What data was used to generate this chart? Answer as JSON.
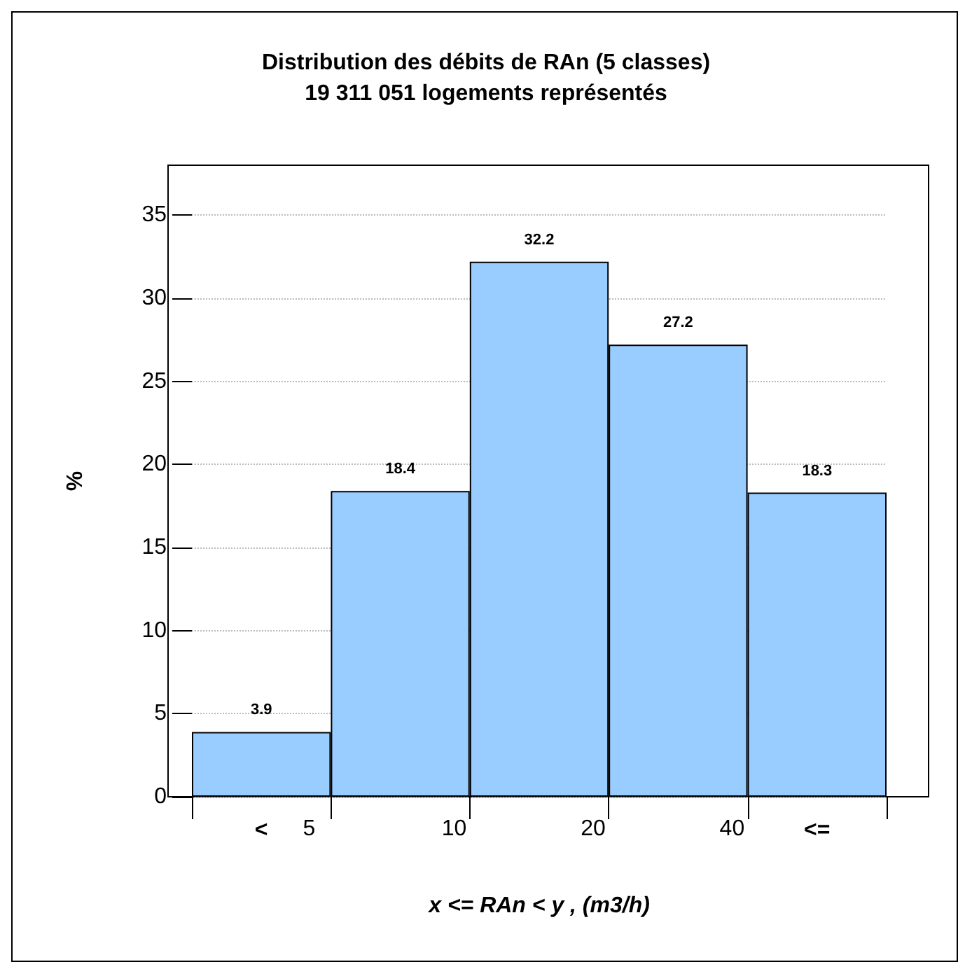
{
  "chart_data": {
    "type": "bar",
    "title": "Distribution des débits de RAn (5 classes)",
    "subtitle": "19 311 051 logements représentés",
    "xlabel": "x <= RAn < y , (m3/h)",
    "ylabel": "%",
    "categories": [
      "<",
      null,
      null,
      null,
      "<="
    ],
    "annotations": [
      "5",
      "10",
      "20",
      "40"
    ],
    "values": [
      3.9,
      18.4,
      32.2,
      27.2,
      18.3
    ],
    "color": "#99ccff",
    "data_labels": true,
    "ylim": [
      0,
      38
    ],
    "yticks": [
      0,
      5,
      10,
      15,
      20,
      25,
      30,
      35
    ],
    "grid": "y"
  }
}
